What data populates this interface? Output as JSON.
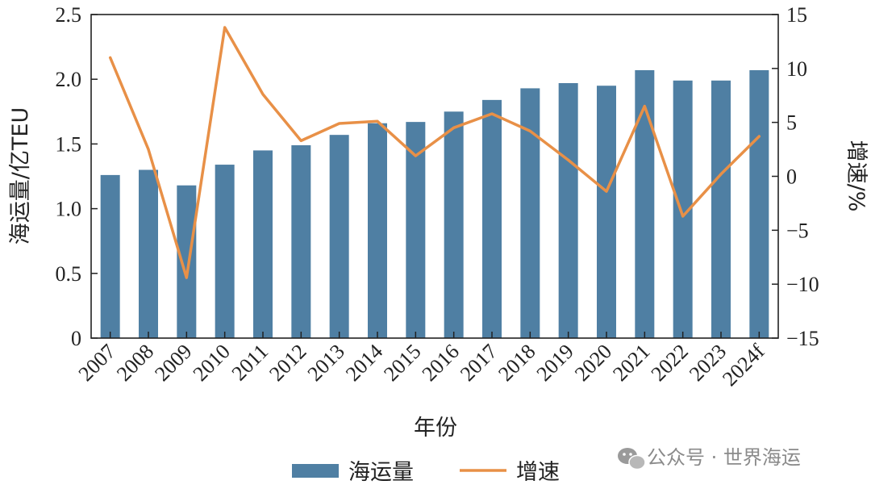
{
  "chart_data": {
    "type": "bar",
    "categories": [
      "2007",
      "2008",
      "2009",
      "2010",
      "2011",
      "2012",
      "2013",
      "2014",
      "2015",
      "2016",
      "2017",
      "2018",
      "2019",
      "2020",
      "2021",
      "2022",
      "2023",
      "2024f"
    ],
    "series": [
      {
        "name": "海运量",
        "type": "bar",
        "axis": "left",
        "color": "#4f7fa3",
        "values": [
          1.26,
          1.3,
          1.18,
          1.34,
          1.45,
          1.49,
          1.57,
          1.66,
          1.67,
          1.75,
          1.84,
          1.93,
          1.97,
          1.95,
          2.07,
          1.99,
          1.99,
          2.07
        ]
      },
      {
        "name": "增速",
        "type": "line",
        "axis": "right",
        "color": "#e89047",
        "values": [
          11.0,
          2.5,
          -9.4,
          13.8,
          7.6,
          3.3,
          4.9,
          5.1,
          1.9,
          4.5,
          5.8,
          4.2,
          1.5,
          -1.4,
          6.5,
          -3.7,
          0.2,
          3.7
        ]
      }
    ],
    "xlabel": "年份",
    "ylabel": "海运量/亿TEU",
    "y2label": "增速/%",
    "ylim": [
      0,
      2.5
    ],
    "y_ticks": [
      "0",
      "0.5",
      "1.0",
      "1.5",
      "2.0",
      "2.5"
    ],
    "y2lim": [
      -15,
      15
    ],
    "y2_ticks": [
      "−15",
      "−10",
      "−5",
      "0",
      "5",
      "10",
      "15"
    ],
    "grid": false,
    "legend_position": "bottom-center"
  },
  "watermark": {
    "icon": "wechat-icon",
    "text": "公众号 · 世界海运"
  }
}
